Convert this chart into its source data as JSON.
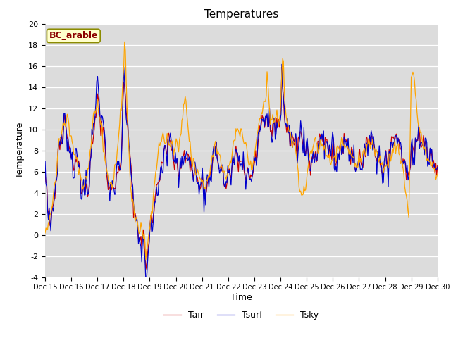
{
  "title": "Temperatures",
  "xlabel": "Time",
  "ylabel": "Temperature",
  "ylim": [
    -4,
    20
  ],
  "bg_color": "#dcdcdc",
  "fig_color": "#ffffff",
  "annotation_text": "BC_arable",
  "annotation_color": "#8b0000",
  "annotation_bg": "#ffffcc",
  "legend_labels": [
    "Tair",
    "Tsurf",
    "Tsky"
  ],
  "line_colors": [
    "#cc0000",
    "#0000cc",
    "#ffa500"
  ],
  "xtick_labels": [
    "Dec 15",
    "Dec 16",
    "Dec 17",
    "Dec 18",
    "Dec 19",
    "Dec 20",
    "Dec 21",
    "Dec 22",
    "Dec 23",
    "Dec 24",
    "Dec 25",
    "Dec 26",
    "Dec 27",
    "Dec 28",
    "Dec 29",
    "Dec 30"
  ],
  "ytick_values": [
    -4,
    -2,
    0,
    2,
    4,
    6,
    8,
    10,
    12,
    14,
    16,
    18,
    20
  ]
}
